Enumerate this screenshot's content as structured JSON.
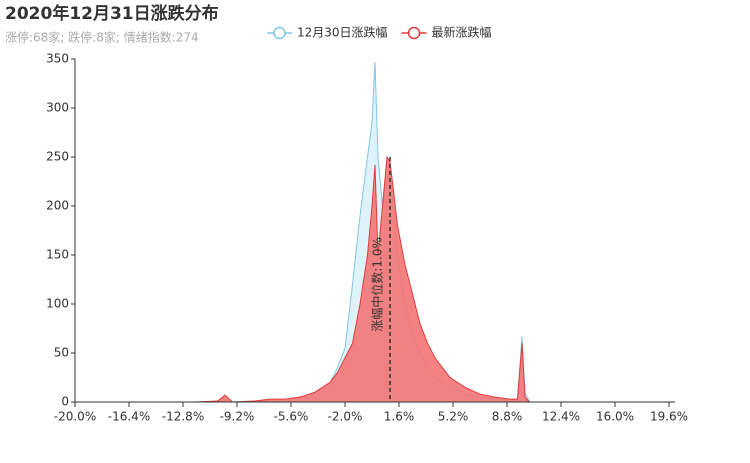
{
  "chart_data": {
    "type": "area",
    "title": "2020年12月31日涨跌分布",
    "subtitle": "涨停:68家; 跌停:8家; 情绪指数:274",
    "x": [
      -20,
      -12,
      -10.5,
      -10,
      -9.5,
      -8,
      -7,
      -6,
      -5,
      -4,
      -3,
      -2.5,
      -2,
      -1.5,
      -1,
      -0.5,
      -0.2,
      0,
      0.2,
      0.5,
      0.8,
      1,
      1.2,
      1.5,
      2,
      2.5,
      3,
      3.5,
      4,
      4.5,
      5,
      5.5,
      6,
      7,
      8,
      9,
      9.5,
      9.8,
      10,
      10.3,
      12,
      20
    ],
    "series": [
      {
        "name": "12月30日涨跌幅",
        "color": "#7ec8e3",
        "fill": "#dff2fa",
        "values": [
          0,
          0,
          0,
          1,
          0,
          1,
          2,
          3,
          5,
          10,
          20,
          35,
          55,
          120,
          190,
          250,
          285,
          347,
          250,
          200,
          225,
          240,
          200,
          150,
          100,
          70,
          50,
          35,
          25,
          20,
          15,
          12,
          8,
          5,
          3,
          2,
          2,
          67,
          10,
          0,
          0,
          0
        ]
      },
      {
        "name": "最新涨跌幅",
        "color": "#e23b3b",
        "fill": "#f37474",
        "values": [
          0,
          0,
          1,
          7,
          0,
          1,
          3,
          3,
          5,
          10,
          20,
          30,
          45,
          60,
          100,
          150,
          200,
          242,
          150,
          200,
          250,
          245,
          220,
          180,
          140,
          110,
          80,
          60,
          45,
          35,
          25,
          20,
          15,
          8,
          5,
          3,
          3,
          60,
          5,
          0,
          0,
          0
        ]
      }
    ],
    "median": {
      "value": 1.0,
      "label": "涨幅中位数:1.0%"
    },
    "xlim": [
      -20,
      20
    ],
    "xticks": [
      {
        "value": -20,
        "label": "-20.0%"
      },
      {
        "value": -16.4,
        "label": "-16.4%"
      },
      {
        "value": -12.8,
        "label": "-12.8%"
      },
      {
        "value": -9.2,
        "label": "-9.2%"
      },
      {
        "value": -5.6,
        "label": "-5.6%"
      },
      {
        "value": -2,
        "label": "-2.0%"
      },
      {
        "value": 1.6,
        "label": "1.6%"
      },
      {
        "value": 5.2,
        "label": "5.2%"
      },
      {
        "value": 8.8,
        "label": "8.8%"
      },
      {
        "value": 12.4,
        "label": "12.4%"
      },
      {
        "value": 16,
        "label": "16.0%"
      },
      {
        "value": 19.6,
        "label": "19.6%"
      }
    ],
    "ylim": [
      0,
      350
    ],
    "yticks": [
      0,
      50,
      100,
      150,
      200,
      250,
      300,
      350
    ],
    "grid": false
  }
}
